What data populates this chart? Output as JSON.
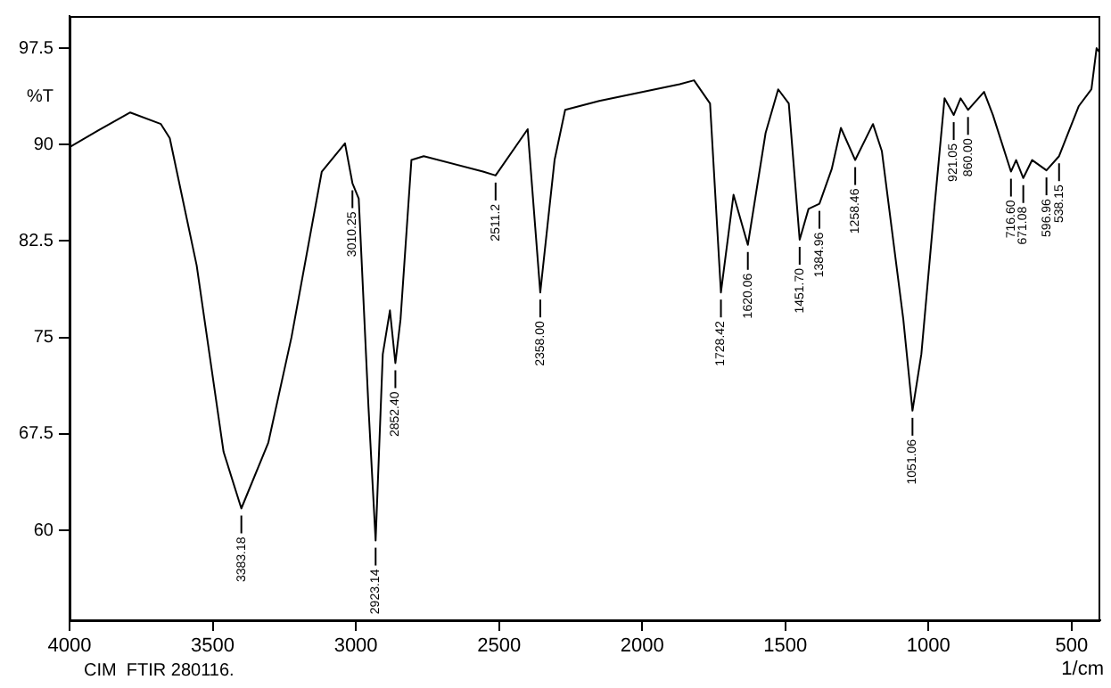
{
  "chart_data": {
    "type": "line",
    "xlabel": "1/cm",
    "ylabel": "%T",
    "xlim": [
      4000,
      400
    ],
    "xticks": [
      4000,
      3500,
      3000,
      2500,
      2000,
      1500,
      1000,
      500
    ],
    "ylim": [
      53,
      100
    ],
    "yticks": [
      97.5,
      90,
      82.5,
      75,
      67.5,
      60
    ],
    "grid": false,
    "legend": false,
    "marker": "none",
    "line_style": "solid",
    "series": [
      {
        "color": "#000000",
        "x": [
          4000,
          3900,
          3788,
          3681,
          3650,
          3556,
          3462,
          3400,
          3306,
          3225,
          3119,
          3038,
          3012,
          2990,
          2956,
          2931,
          2906,
          2881,
          2862,
          2844,
          2806,
          2763,
          2556,
          2512,
          2400,
          2356,
          2306,
          2269,
          2150,
          1869,
          1819,
          1763,
          1725,
          1681,
          1631,
          1569,
          1525,
          1488,
          1450,
          1419,
          1381,
          1338,
          1306,
          1256,
          1194,
          1163,
          1088,
          1056,
          1025,
          981,
          944,
          912,
          888,
          862,
          806,
          775,
          712,
          694,
          669,
          638,
          588,
          544,
          475,
          431,
          413,
          400
        ],
        "values": [
          89.8,
          91.1,
          92.5,
          91.6,
          90.5,
          80.6,
          66.1,
          61.7,
          66.8,
          75.0,
          87.9,
          90.1,
          87.0,
          85.8,
          69.6,
          59.2,
          73.7,
          77.1,
          73.0,
          76.4,
          88.8,
          89.1,
          87.9,
          87.6,
          91.2,
          78.5,
          88.8,
          92.7,
          93.4,
          94.7,
          95.0,
          93.2,
          78.5,
          86.1,
          82.2,
          90.9,
          94.3,
          93.2,
          82.6,
          85.0,
          85.4,
          88.1,
          91.3,
          88.8,
          91.6,
          89.5,
          76.4,
          69.3,
          73.7,
          84.7,
          93.6,
          92.3,
          93.6,
          92.7,
          94.1,
          92.3,
          87.9,
          88.8,
          87.4,
          88.8,
          88.0,
          89.1,
          93.0,
          94.3,
          97.5,
          97.1
        ]
      }
    ],
    "annotations": [
      {
        "text": "3383.18",
        "x": 3400,
        "y": 61.7
      },
      {
        "text": "3010.25",
        "x": 3012,
        "y": 87.0
      },
      {
        "text": "2923.14",
        "x": 2931,
        "y": 59.2
      },
      {
        "text": "2852.40",
        "x": 2862,
        "y": 73.0
      },
      {
        "text": "2511.2",
        "x": 2512,
        "y": 87.6
      },
      {
        "text": "2358.00",
        "x": 2356,
        "y": 78.5
      },
      {
        "text": "1728.42",
        "x": 1725,
        "y": 78.5
      },
      {
        "text": "1620.06",
        "x": 1631,
        "y": 82.2
      },
      {
        "text": "1451.70",
        "x": 1450,
        "y": 82.6
      },
      {
        "text": "1384.96",
        "x": 1381,
        "y": 85.4
      },
      {
        "text": "1258.46",
        "x": 1256,
        "y": 88.8
      },
      {
        "text": "1051.06",
        "x": 1056,
        "y": 69.3
      },
      {
        "text": "921.05",
        "x": 912,
        "y": 92.3
      },
      {
        "text": "860.00",
        "x": 862,
        "y": 92.7
      },
      {
        "text": "716.60",
        "x": 712,
        "y": 87.9
      },
      {
        "text": "671.08",
        "x": 669,
        "y": 87.4
      },
      {
        "text": "596.96",
        "x": 588,
        "y": 88.0
      },
      {
        "text": "538.15",
        "x": 544,
        "y": 89.1
      },
      "CIM  FTIR 280116."
    ]
  }
}
